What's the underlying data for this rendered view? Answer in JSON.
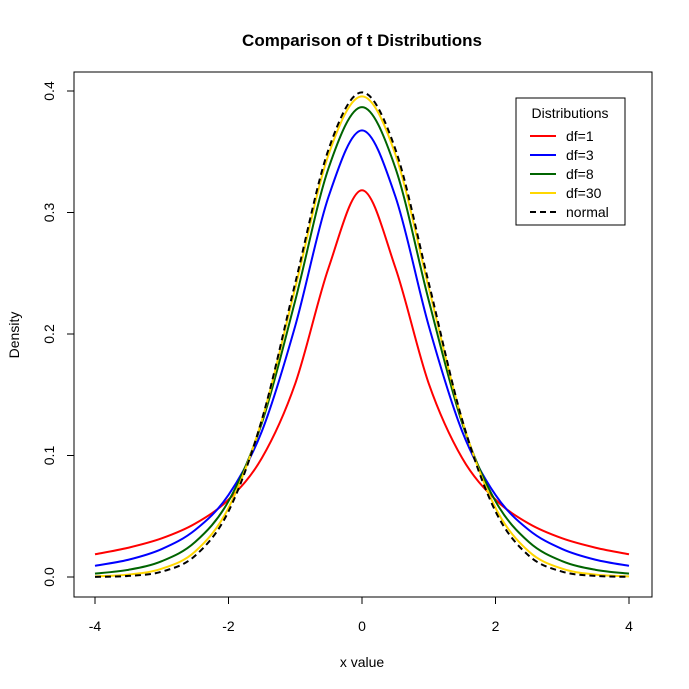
{
  "chart_data": {
    "type": "line",
    "title": "Comparison of t Distributions",
    "xlabel": "x value",
    "ylabel": "Density",
    "xlim": [
      -4,
      4
    ],
    "ylim": [
      0,
      0.4
    ],
    "xticks": [
      "-4",
      "-2",
      "0",
      "2",
      "4"
    ],
    "xtick_values": [
      -4,
      -2,
      0,
      2,
      4
    ],
    "yticks": [
      "0.0",
      "0.1",
      "0.2",
      "0.3",
      "0.4"
    ],
    "ytick_values": [
      0,
      0.1,
      0.2,
      0.3,
      0.4
    ],
    "grid": false,
    "legend": {
      "title": "Distributions",
      "placement": "top-right"
    },
    "x": [
      0,
      0.5,
      1,
      1.5,
      2,
      2.5,
      3,
      3.5,
      4
    ],
    "symmetric": true,
    "series": [
      {
        "name": "df=1",
        "color": "#ff0000",
        "dash": false,
        "values": [
          0.3183,
          0.2546,
          0.1592,
          0.0979,
          0.0637,
          0.0439,
          0.0318,
          0.0241,
          0.0187
        ]
      },
      {
        "name": "df=3",
        "color": "#0000ff",
        "dash": false,
        "values": [
          0.3676,
          0.3132,
          0.2067,
          0.12,
          0.0675,
          0.0387,
          0.023,
          0.0142,
          0.0092
        ]
      },
      {
        "name": "df=8",
        "color": "#006400",
        "dash": false,
        "values": [
          0.3867,
          0.3367,
          0.2276,
          0.1268,
          0.0624,
          0.0288,
          0.013,
          0.0059,
          0.0028
        ]
      },
      {
        "name": "df=30",
        "color": "#ffd700",
        "dash": false,
        "values": [
          0.3956,
          0.3478,
          0.238,
          0.129,
          0.0569,
          0.021,
          0.0068,
          0.002,
          0.0005
        ]
      },
      {
        "name": "normal",
        "color": "#000000",
        "dash": true,
        "values": [
          0.3989,
          0.3521,
          0.242,
          0.1295,
          0.054,
          0.0175,
          0.0044,
          0.0009,
          0.0001
        ]
      }
    ]
  }
}
